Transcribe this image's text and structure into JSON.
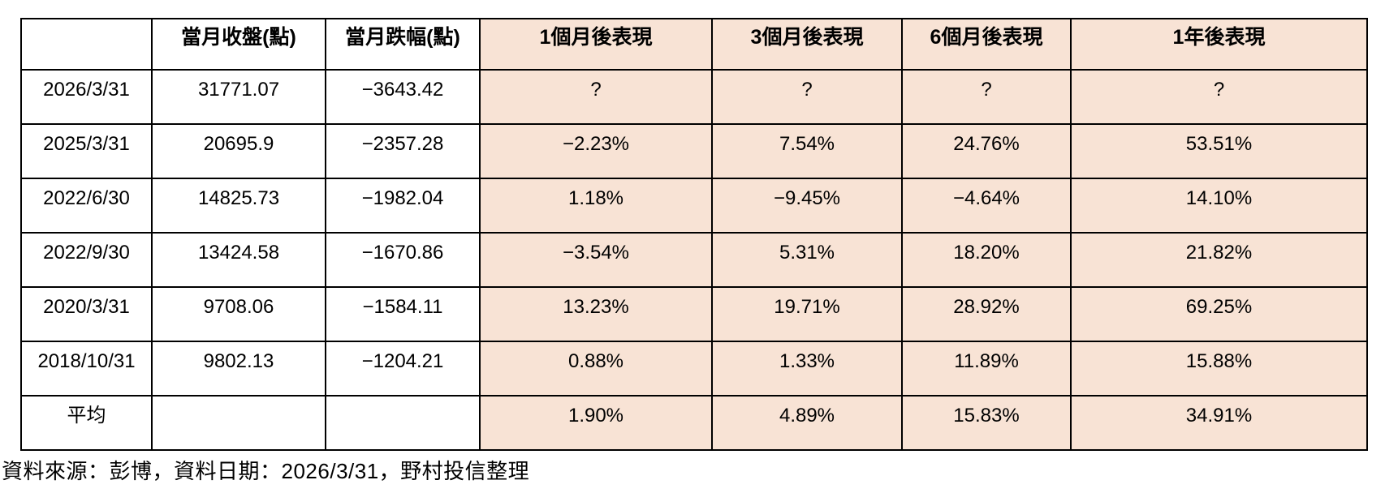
{
  "chart_data": {
    "type": "table",
    "title": "",
    "columns": [
      "",
      "當月收盤(點)",
      "當月跌幅(點)",
      "1個月後表現",
      "3個月後表現",
      "6個月後表現",
      "1年後表現"
    ],
    "rows": [
      [
        "2026/3/31",
        "31771.07",
        "−3643.42",
        "?",
        "?",
        "?",
        "?"
      ],
      [
        "2025/3/31",
        "20695.9",
        "−2357.28",
        "−2.23%",
        "7.54%",
        "24.76%",
        "53.51%"
      ],
      [
        "2022/6/30",
        "14825.73",
        "−1982.04",
        "1.18%",
        "−9.45%",
        "−4.64%",
        "14.10%"
      ],
      [
        "2022/9/30",
        "13424.58",
        "−1670.86",
        "−3.54%",
        "5.31%",
        "18.20%",
        "21.82%"
      ],
      [
        "2020/3/31",
        "9708.06",
        "−1584.11",
        "13.23%",
        "19.71%",
        "28.92%",
        "69.25%"
      ],
      [
        "2018/10/31",
        "9802.13",
        "−1204.21",
        "0.88%",
        "1.33%",
        "11.89%",
        "15.88%"
      ],
      [
        "平均",
        "",
        "",
        "1.90%",
        "4.89%",
        "15.83%",
        "34.91%"
      ]
    ],
    "highlighted_columns": [
      3,
      4,
      5,
      6
    ],
    "layout": {
      "grid": true,
      "header_bold": true,
      "average_row_label_bold": true
    }
  },
  "footer": {
    "source_note": "資料來源：彭博，資料日期：2026/3/31，野村投信整理"
  },
  "colors": {
    "highlight_bg": "#f8e3d5",
    "cell_bg": "#ffffff",
    "border": "#000000",
    "text": "#000000"
  }
}
